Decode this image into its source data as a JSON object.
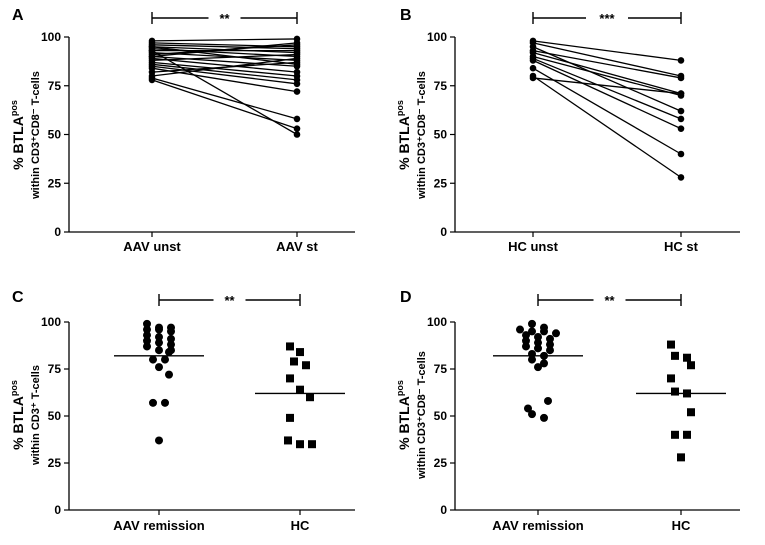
{
  "figure": {
    "background": "#ffffff",
    "ink": "#000000"
  },
  "chart_data": [
    {
      "panel": "A",
      "type": "paired-line-scatter",
      "ylabel_line1": "% BTLA",
      "ylabel_sup1": "pos",
      "ylabel_line2": "within CD3⁺CD8⁻ T-cells",
      "ylim": [
        0,
        100
      ],
      "yticks": [
        "0",
        "25",
        "50",
        "75",
        "100"
      ],
      "categories": [
        "AAV unst",
        "AAV st"
      ],
      "marker": "circle",
      "significance": "**",
      "pairs": [
        [
          98,
          99
        ],
        [
          97,
          95
        ],
        [
          96,
          94
        ],
        [
          95,
          92
        ],
        [
          94,
          90
        ],
        [
          93,
          93
        ],
        [
          92,
          88
        ],
        [
          91,
          96
        ],
        [
          90,
          85
        ],
        [
          89,
          82
        ],
        [
          88,
          91
        ],
        [
          87,
          80
        ],
        [
          86,
          78
        ],
        [
          85,
          76
        ],
        [
          84,
          72
        ],
        [
          82,
          87
        ],
        [
          80,
          89
        ],
        [
          79,
          58
        ],
        [
          78,
          53
        ],
        [
          93,
          50
        ],
        [
          90,
          97
        ],
        [
          95,
          86
        ]
      ]
    },
    {
      "panel": "B",
      "type": "paired-line-scatter",
      "ylabel_line1": "% BTLA",
      "ylabel_sup1": "pos",
      "ylabel_line2": "within CD3⁺CD8⁻ T-cells",
      "ylim": [
        0,
        100
      ],
      "yticks": [
        "0",
        "25",
        "50",
        "75",
        "100"
      ],
      "categories": [
        "HC unst",
        "HC st"
      ],
      "marker": "circle",
      "significance": "***",
      "pairs": [
        [
          98,
          88
        ],
        [
          97,
          80
        ],
        [
          93,
          79
        ],
        [
          92,
          71
        ],
        [
          90,
          70
        ],
        [
          89,
          58
        ],
        [
          88,
          53
        ],
        [
          84,
          40
        ],
        [
          80,
          28
        ],
        [
          79,
          71
        ],
        [
          95,
          62
        ]
      ]
    },
    {
      "panel": "C",
      "type": "dot-plot",
      "ylabel_line1": "% BTLA",
      "ylabel_sup1": "pos",
      "ylabel_line2": "within CD3⁺ T-cells",
      "ylim": [
        0,
        100
      ],
      "yticks": [
        "0",
        "25",
        "50",
        "75",
        "100"
      ],
      "categories": [
        "AAV remission",
        "HC"
      ],
      "significance": "**",
      "groups": [
        {
          "name": "AAV remission",
          "marker": "circle",
          "mean": 82,
          "values": [
            99,
            97,
            97,
            96,
            96,
            95,
            93,
            92,
            91,
            90,
            89,
            88,
            87,
            85,
            85,
            84,
            80,
            80,
            76,
            72,
            57,
            57,
            37
          ]
        },
        {
          "name": "HC",
          "marker": "square",
          "mean": 62,
          "values": [
            87,
            84,
            79,
            77,
            70,
            64,
            60,
            49,
            37,
            35,
            35
          ]
        }
      ]
    },
    {
      "panel": "D",
      "type": "dot-plot",
      "ylabel_line1": "% BTLA",
      "ylabel_sup1": "pos",
      "ylabel_line2": "within CD3⁺CD8⁻ T-cells",
      "ylim": [
        0,
        100
      ],
      "yticks": [
        "0",
        "25",
        "50",
        "75",
        "100"
      ],
      "categories": [
        "AAV remission",
        "HC"
      ],
      "significance": "**",
      "groups": [
        {
          "name": "AAV remission",
          "marker": "circle",
          "mean": 82,
          "values": [
            99,
            97,
            96,
            95,
            95,
            94,
            93,
            92,
            91,
            90,
            89,
            88,
            87,
            86,
            85,
            83,
            82,
            80,
            78,
            76,
            58,
            54,
            51,
            49
          ]
        },
        {
          "name": "HC",
          "marker": "square",
          "mean": 62,
          "values": [
            88,
            82,
            81,
            77,
            70,
            63,
            62,
            52,
            40,
            40,
            28
          ]
        }
      ]
    }
  ]
}
